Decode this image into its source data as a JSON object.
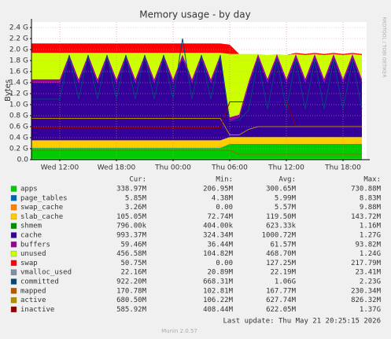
{
  "chart_data": {
    "type": "area",
    "title": "Memory usage - by day",
    "y_label": "Bytes",
    "side_label": "RRDTOOL / TOBI OETIKER",
    "categories": [
      null,
      null,
      null,
      "Wed 12:00",
      null,
      null,
      null,
      null,
      null,
      "Wed 18:00",
      null,
      null,
      null,
      null,
      null,
      "Thu 00:00",
      null,
      null,
      null,
      null,
      null,
      "Thu 06:00",
      null,
      null,
      null,
      null,
      null,
      "Thu 12:00",
      null,
      null,
      null,
      null,
      null,
      "Thu 18:00",
      null,
      null
    ],
    "ylim": [
      0,
      2.5
    ],
    "yticks": [
      {
        "value": 0,
        "label": "0.0"
      },
      {
        "value": 0.2,
        "label": "0.2 G"
      },
      {
        "value": 0.4,
        "label": "0.4 G"
      },
      {
        "value": 0.6,
        "label": "0.6 G"
      },
      {
        "value": 0.8,
        "label": "0.8 G"
      },
      {
        "value": 1.0,
        "label": "1.0 G"
      },
      {
        "value": 1.2,
        "label": "1.2 G"
      },
      {
        "value": 1.4,
        "label": "1.4 G"
      },
      {
        "value": 1.6,
        "label": "1.6 G"
      },
      {
        "value": 1.8,
        "label": "1.8 G"
      },
      {
        "value": 2.0,
        "label": "2.0 G"
      },
      {
        "value": 2.2,
        "label": "2.2 G"
      },
      {
        "value": 2.4,
        "label": "2.4 G"
      }
    ],
    "grid": true,
    "legend_headers": [
      "Cur:",
      "Min:",
      "Avg:",
      "Max:"
    ],
    "series": [
      {
        "name": "apps",
        "color": "#00cc00",
        "style": "area",
        "stats": [
          "338.97M",
          "206.95M",
          "300.65M",
          "730.88M"
        ],
        "values": [
          0.21,
          0.21,
          0.21,
          0.21,
          0.21,
          0.21,
          0.21,
          0.21,
          0.21,
          0.21,
          0.21,
          0.21,
          0.21,
          0.21,
          0.21,
          0.21,
          0.21,
          0.21,
          0.21,
          0.21,
          0.21,
          0.28,
          0.28,
          0.28,
          0.28,
          0.28,
          0.28,
          0.28,
          0.28,
          0.28,
          0.28,
          0.28,
          0.28,
          0.28,
          0.28,
          0.28
        ]
      },
      {
        "name": "page_tables",
        "color": "#0066b3",
        "style": "area",
        "stats": [
          "5.85M",
          "4.38M",
          "5.99M",
          "8.83M"
        ],
        "values": [
          0.006,
          0.006,
          0.006,
          0.006,
          0.006,
          0.006,
          0.006,
          0.006,
          0.006,
          0.006,
          0.006,
          0.006,
          0.006,
          0.006,
          0.006,
          0.006,
          0.006,
          0.006,
          0.006,
          0.006,
          0.006,
          0.006,
          0.006,
          0.006,
          0.006,
          0.006,
          0.006,
          0.006,
          0.006,
          0.006,
          0.006,
          0.006,
          0.006,
          0.006,
          0.006,
          0.006
        ]
      },
      {
        "name": "swap_cache",
        "color": "#ff8000",
        "style": "area",
        "stats": [
          "3.26M",
          "0.00",
          "5.57M",
          "9.88M"
        ],
        "values": [
          0.004,
          0.004,
          0.004,
          0.004,
          0.004,
          0.004,
          0.004,
          0.004,
          0.004,
          0.004,
          0.004,
          0.004,
          0.004,
          0.004,
          0.004,
          0.004,
          0.004,
          0.004,
          0.004,
          0.004,
          0.004,
          0.003,
          0.003,
          0.003,
          0.003,
          0.003,
          0.003,
          0.003,
          0.003,
          0.003,
          0.003,
          0.003,
          0.003,
          0.003,
          0.003,
          0.003
        ]
      },
      {
        "name": "slab_cache",
        "color": "#ffcc00",
        "style": "area",
        "stats": [
          "105.05M",
          "72.74M",
          "119.50M",
          "143.72M"
        ],
        "values": [
          0.13,
          0.13,
          0.13,
          0.13,
          0.13,
          0.13,
          0.13,
          0.13,
          0.13,
          0.13,
          0.13,
          0.13,
          0.13,
          0.13,
          0.13,
          0.13,
          0.13,
          0.13,
          0.13,
          0.13,
          0.13,
          0.12,
          0.12,
          0.12,
          0.12,
          0.12,
          0.12,
          0.12,
          0.12,
          0.12,
          0.12,
          0.12,
          0.12,
          0.12,
          0.12,
          0.12
        ]
      },
      {
        "name": "shmem",
        "color": "#008f00",
        "style": "area",
        "stats": [
          "796.00k",
          "404.00k",
          "623.33k",
          "1.16M"
        ],
        "values": [
          0.001,
          0.001,
          0.001,
          0.001,
          0.001,
          0.001,
          0.001,
          0.001,
          0.001,
          0.001,
          0.001,
          0.001,
          0.001,
          0.001,
          0.001,
          0.001,
          0.001,
          0.001,
          0.001,
          0.001,
          0.001,
          0.001,
          0.001,
          0.001,
          0.001,
          0.001,
          0.001,
          0.001,
          0.001,
          0.001,
          0.001,
          0.001,
          0.001,
          0.001,
          0.001,
          0.001
        ]
      },
      {
        "name": "cache",
        "color": "#330099",
        "style": "area",
        "stats": [
          "993.37M",
          "324.34M",
          "1000.72M",
          "1.27G"
        ],
        "values": [
          1.05,
          1.05,
          1.05,
          1.05,
          1.5,
          1.05,
          1.5,
          1.05,
          1.5,
          1.05,
          1.5,
          1.05,
          1.5,
          1.05,
          1.5,
          1.05,
          1.5,
          1.05,
          1.5,
          1.05,
          1.5,
          0.3,
          0.35,
          0.95,
          1.45,
          1.0,
          1.45,
          1.0,
          1.45,
          1.0,
          1.45,
          1.0,
          1.45,
          1.0,
          1.45,
          1.0
        ]
      },
      {
        "name": "buffers",
        "color": "#990099",
        "style": "area",
        "stats": [
          "59.46M",
          "36.44M",
          "61.57M",
          "93.82M"
        ],
        "values": [
          0.06,
          0.06,
          0.06,
          0.06,
          0.06,
          0.06,
          0.06,
          0.06,
          0.06,
          0.06,
          0.06,
          0.06,
          0.06,
          0.06,
          0.06,
          0.06,
          0.06,
          0.06,
          0.06,
          0.06,
          0.06,
          0.06,
          0.06,
          0.06,
          0.06,
          0.06,
          0.06,
          0.06,
          0.06,
          0.06,
          0.06,
          0.06,
          0.06,
          0.06,
          0.06,
          0.06
        ]
      },
      {
        "name": "unused",
        "color": "#ccff00",
        "style": "area",
        "stats": [
          "456.58M",
          "104.82M",
          "468.70M",
          "1.24G"
        ],
        "values": [
          0.48,
          0.48,
          0.48,
          0.48,
          0.03,
          0.48,
          0.03,
          0.48,
          0.03,
          0.48,
          0.03,
          0.48,
          0.03,
          0.48,
          0.03,
          0.48,
          0.03,
          0.48,
          0.03,
          0.48,
          0.03,
          1.15,
          1.1,
          0.5,
          0.0,
          0.43,
          0.0,
          0.43,
          0.0,
          0.43,
          0.0,
          0.43,
          0.0,
          0.43,
          0.0,
          0.43
        ]
      },
      {
        "name": "swap",
        "color": "#ff0000",
        "style": "area",
        "stats": [
          "50.75M",
          "0.00",
          "127.25M",
          "217.79M"
        ],
        "values": [
          0.17,
          0.17,
          0.17,
          0.17,
          0.17,
          0.17,
          0.17,
          0.17,
          0.17,
          0.17,
          0.17,
          0.17,
          0.17,
          0.17,
          0.17,
          0.17,
          0.17,
          0.17,
          0.17,
          0.17,
          0.17,
          0.17,
          0,
          0,
          0,
          0,
          0,
          0,
          0.02,
          0.02,
          0.02,
          0.02,
          0.02,
          0.02,
          0.02,
          0.02
        ]
      },
      {
        "name": "vmalloc_used",
        "color": "#7f8fa0",
        "style": "line",
        "stats": [
          "22.16M",
          "20.89M",
          "22.19M",
          "23.41M"
        ],
        "values": [
          0.022,
          0.022,
          0.022,
          0.022,
          0.022,
          0.022,
          0.022,
          0.022,
          0.022,
          0.022,
          0.022,
          0.022,
          0.022,
          0.022,
          0.022,
          0.022,
          0.022,
          0.022,
          0.022,
          0.022,
          0.022,
          0.022,
          0.022,
          0.022,
          0.022,
          0.022,
          0.022,
          0.022,
          0.022,
          0.022,
          0.022,
          0.022,
          0.022,
          0.022,
          0.022,
          0.022
        ]
      },
      {
        "name": "committed",
        "color": "#00487d",
        "style": "line",
        "stats": [
          "922.20M",
          "668.31M",
          "1.06G",
          "2.23G"
        ],
        "values": [
          1.1,
          1.1,
          1.1,
          1.1,
          1.9,
          1.1,
          1.9,
          1.1,
          1.9,
          1.1,
          1.9,
          1.1,
          1.9,
          1.1,
          1.9,
          1.1,
          2.2,
          1.1,
          1.9,
          1.1,
          1.9,
          0.7,
          0.72,
          0.9,
          1.8,
          0.92,
          1.8,
          0.92,
          1.8,
          0.92,
          1.8,
          0.92,
          1.8,
          0.92,
          1.8,
          0.92
        ]
      },
      {
        "name": "mapped",
        "color": "#b35a00",
        "style": "line",
        "stats": [
          "170.78M",
          "102.81M",
          "167.77M",
          "230.34M"
        ],
        "values": [
          0.17,
          0.17,
          0.17,
          0.17,
          0.17,
          0.17,
          0.17,
          0.17,
          0.17,
          0.17,
          0.17,
          0.17,
          0.17,
          0.17,
          0.17,
          0.17,
          0.17,
          0.17,
          0.17,
          0.17,
          0.17,
          0.17,
          0.1,
          0.1,
          0.1,
          0.1,
          0.1,
          0.1,
          0.1,
          0.1,
          0.1,
          0.1,
          0.1,
          0.1,
          0.1,
          0.1
        ]
      },
      {
        "name": "active",
        "color": "#b38f00",
        "style": "line",
        "stats": [
          "680.50M",
          "106.22M",
          "627.74M",
          "826.32M"
        ],
        "values": [
          0.75,
          0.75,
          0.75,
          0.75,
          0.75,
          0.75,
          0.75,
          0.75,
          0.75,
          0.75,
          0.75,
          0.75,
          0.75,
          0.75,
          0.75,
          0.75,
          0.75,
          0.75,
          0.75,
          0.75,
          0.75,
          0.45,
          0.45,
          0.55,
          0.6,
          0.6,
          0.6,
          0.6,
          0.6,
          0.6,
          0.6,
          0.6,
          0.6,
          0.6,
          0.6,
          0.6
        ]
      },
      {
        "name": "inactive",
        "color": "#8f0000",
        "style": "line",
        "stats": [
          "585.92M",
          "408.44M",
          "622.05M",
          "1.37G"
        ],
        "values": [
          0.58,
          0.58,
          0.58,
          0.58,
          0.58,
          0.58,
          0.58,
          0.58,
          0.58,
          0.58,
          0.58,
          0.58,
          0.58,
          0.58,
          0.58,
          0.58,
          0.58,
          0.58,
          0.58,
          0.58,
          0.58,
          1.05,
          1.05,
          1.05,
          1.05,
          1.05,
          1.05,
          1.05,
          0.62,
          0.62,
          0.62,
          0.62,
          0.62,
          0.62,
          0.62,
          0.62
        ]
      }
    ],
    "last_update": "Last update: Thu May 21 20:25:15 2026",
    "footer": "Munin 2.0.57"
  }
}
